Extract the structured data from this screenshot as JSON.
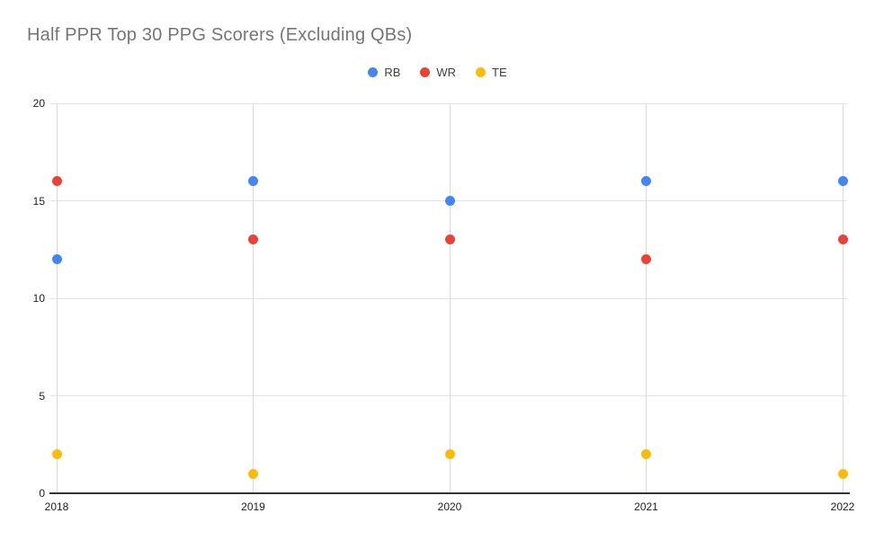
{
  "title": "Half PPR Top 30 PPG Scorers (Excluding QBs)",
  "legend": {
    "items": [
      {
        "label": "RB",
        "color": "#4285F4"
      },
      {
        "label": "WR",
        "color": "#EA4335"
      },
      {
        "label": "TE",
        "color": "#FBBC04"
      }
    ]
  },
  "chart_data": {
    "type": "scatter",
    "title": "Half PPR Top 30 PPG Scorers (Excluding QBs)",
    "categories": [
      "2018",
      "2019",
      "2020",
      "2021",
      "2022"
    ],
    "series": [
      {
        "name": "RB",
        "color": "#4285F4",
        "values": [
          12,
          16,
          15,
          16,
          16
        ]
      },
      {
        "name": "WR",
        "color": "#EA4335",
        "values": [
          16,
          13,
          13,
          12,
          13
        ]
      },
      {
        "name": "TE",
        "color": "#FBBC04",
        "values": [
          2,
          1,
          2,
          2,
          1
        ]
      }
    ],
    "xlabel": "",
    "ylabel": "",
    "ylim": [
      0,
      20
    ],
    "yticks": [
      0,
      5,
      10,
      15,
      20
    ],
    "grid": true,
    "legend_position": "top"
  },
  "colors": {
    "background": "#ffffff",
    "grid": "#e3e3e3",
    "axis": "#333333",
    "title_text": "#757575",
    "tick_text": "#212121"
  }
}
